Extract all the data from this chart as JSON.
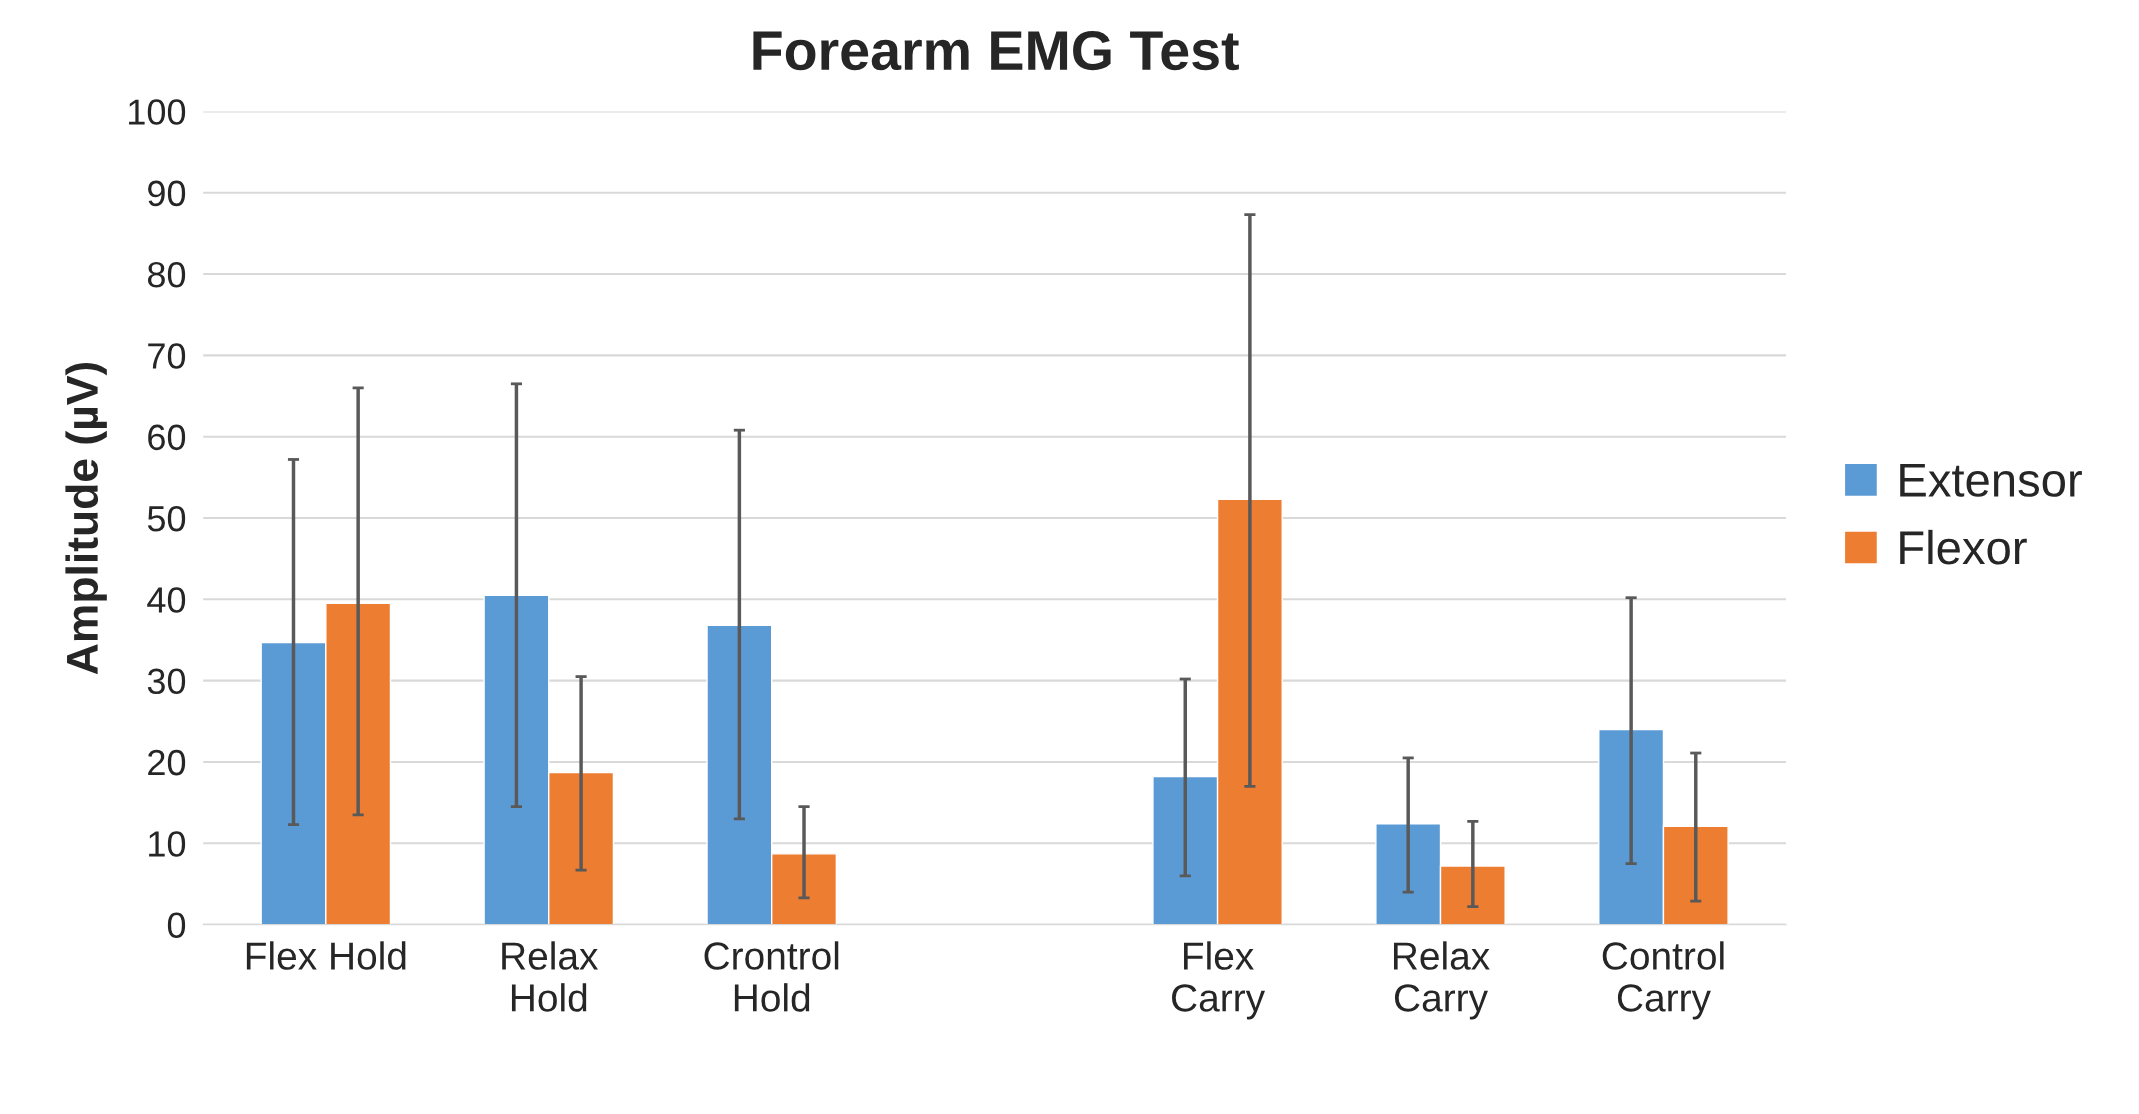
{
  "chart_data": {
    "type": "bar",
    "title": "Forearm EMG Test",
    "ylabel": "Amplitude (µV)",
    "categories": [
      "Flex Hold",
      "Relax\nHold",
      "Crontrol\nHold",
      null,
      "Flex\nCarry",
      "Relax\nCarry",
      "Control\nCarry"
    ],
    "series": [
      {
        "name": "Extensor",
        "color": "#5b9bd5",
        "values": [
          34.7,
          40.5,
          36.8,
          null,
          18.2,
          12.4,
          24.0
        ],
        "errors": [
          [
            12.3,
            57.2
          ],
          [
            14.5,
            66.5
          ],
          [
            13.0,
            60.8
          ],
          null,
          [
            6.0,
            30.2
          ],
          [
            4.0,
            20.5
          ],
          [
            7.5,
            40.2
          ]
        ]
      },
      {
        "name": "Flexor",
        "color": "#ed7d31",
        "values": [
          39.5,
          18.7,
          8.7,
          null,
          52.3,
          7.2,
          12.1
        ],
        "errors": [
          [
            13.5,
            66.0
          ],
          [
            6.7,
            30.5
          ],
          [
            3.3,
            14.5
          ],
          null,
          [
            17.0,
            87.3
          ],
          [
            2.2,
            12.7
          ],
          [
            2.9,
            21.1
          ]
        ]
      }
    ],
    "ylim": [
      0,
      100
    ],
    "yticks": [
      0,
      10,
      20,
      30,
      40,
      50,
      60,
      70,
      80,
      90,
      100
    ],
    "grid": "y",
    "legend": "right"
  }
}
